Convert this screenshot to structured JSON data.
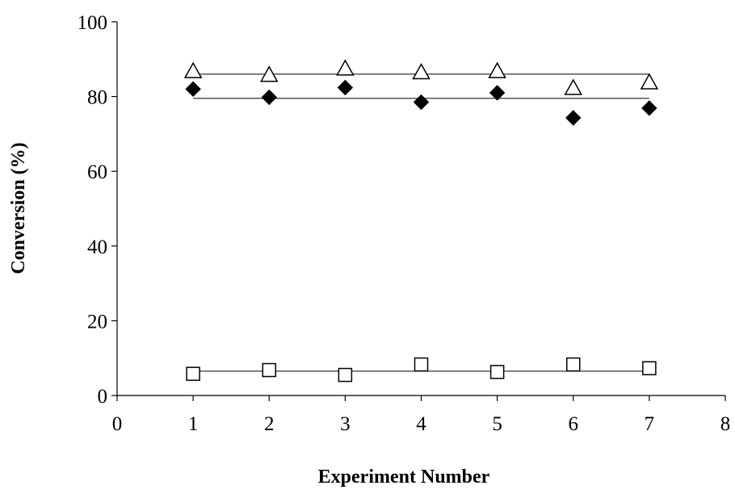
{
  "chart_data": {
    "type": "scatter",
    "x_label": "Experiment Number",
    "y_label": "Conversion (%)",
    "xlim": [
      0,
      8
    ],
    "xticks": [
      0,
      1,
      2,
      3,
      4,
      5,
      6,
      7,
      8
    ],
    "ylim": [
      0,
      100
    ],
    "yticks": [
      0,
      20,
      40,
      60,
      80,
      100
    ],
    "series": [
      {
        "marker": "triangle",
        "color": "#000000",
        "x": [
          1,
          2,
          3,
          4,
          5,
          6,
          7
        ],
        "values": [
          86.8,
          85.8,
          87.5,
          86.5,
          86.8,
          82.3,
          83.8
        ]
      },
      {
        "marker": "diamond",
        "color": "#000000",
        "x": [
          1,
          2,
          3,
          4,
          5,
          6,
          7
        ],
        "values": [
          82,
          79.8,
          82.4,
          78.5,
          81,
          74.3,
          76.9
        ]
      },
      {
        "marker": "square",
        "color": "#000000",
        "x": [
          1,
          2,
          3,
          4,
          5,
          6,
          7
        ],
        "values": [
          5.8,
          6.8,
          5.5,
          8.3,
          6.3,
          8.3,
          7.3
        ]
      }
    ],
    "fit_lines": [
      {
        "x": [
          1,
          7
        ],
        "values": [
          86,
          86
        ]
      },
      {
        "x": [
          1,
          7
        ],
        "values": [
          79.5,
          79.5
        ]
      },
      {
        "x": [
          1,
          7
        ],
        "values": [
          6.5,
          6.5
        ]
      }
    ]
  }
}
